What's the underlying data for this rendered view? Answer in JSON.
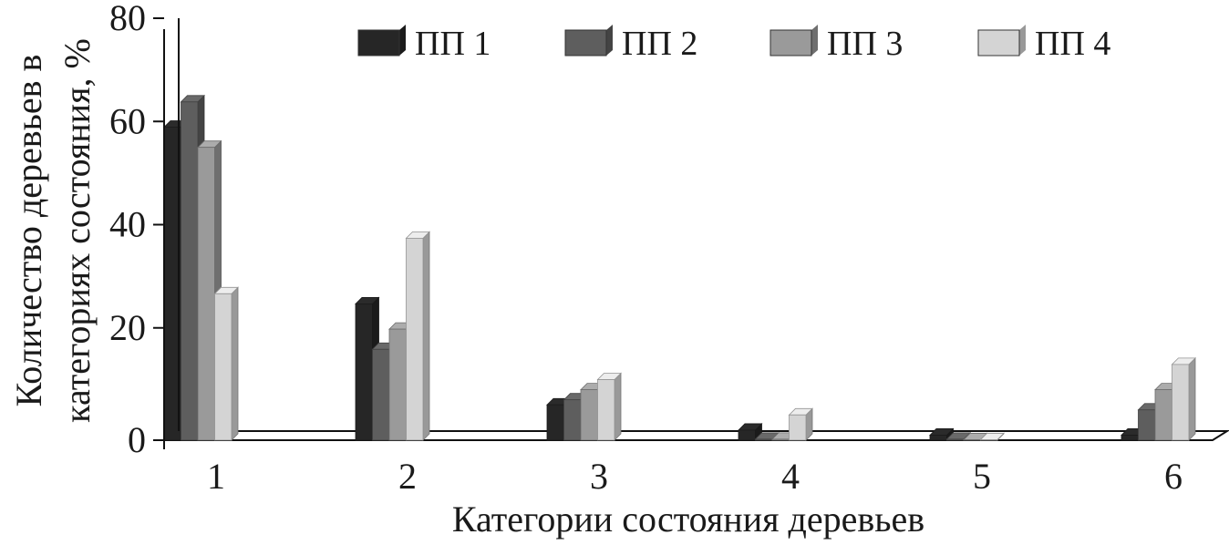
{
  "chart_data": {
    "type": "bar",
    "categories": [
      "1",
      "2",
      "3",
      "4",
      "5",
      "6"
    ],
    "series": [
      {
        "name": "ПП 1",
        "values": [
          62,
          27,
          7,
          2,
          1,
          1
        ],
        "color": "#262626"
      },
      {
        "name": "ПП 2",
        "values": [
          67,
          18,
          8,
          0.2,
          0.2,
          6
        ],
        "color": "#5e5e5e"
      },
      {
        "name": "ПП 3",
        "values": [
          58,
          22,
          10,
          0.2,
          0.1,
          10
        ],
        "color": "#9a9a9a"
      },
      {
        "name": "ПП 4",
        "values": [
          29,
          40,
          12,
          5,
          0.1,
          15
        ],
        "color": "#d4d4d4"
      }
    ],
    "xlabel": "Категории состояния деревьев",
    "ylabel_line1": "Количество деревьев в",
    "ylabel_line2": "категориях состояния, %",
    "ylim": [
      0,
      80
    ],
    "yticks": [
      "0",
      "20",
      "40",
      "60",
      "80"
    ],
    "grid": false,
    "legend_position": "top-right",
    "style": "3d-clustered-bar"
  }
}
